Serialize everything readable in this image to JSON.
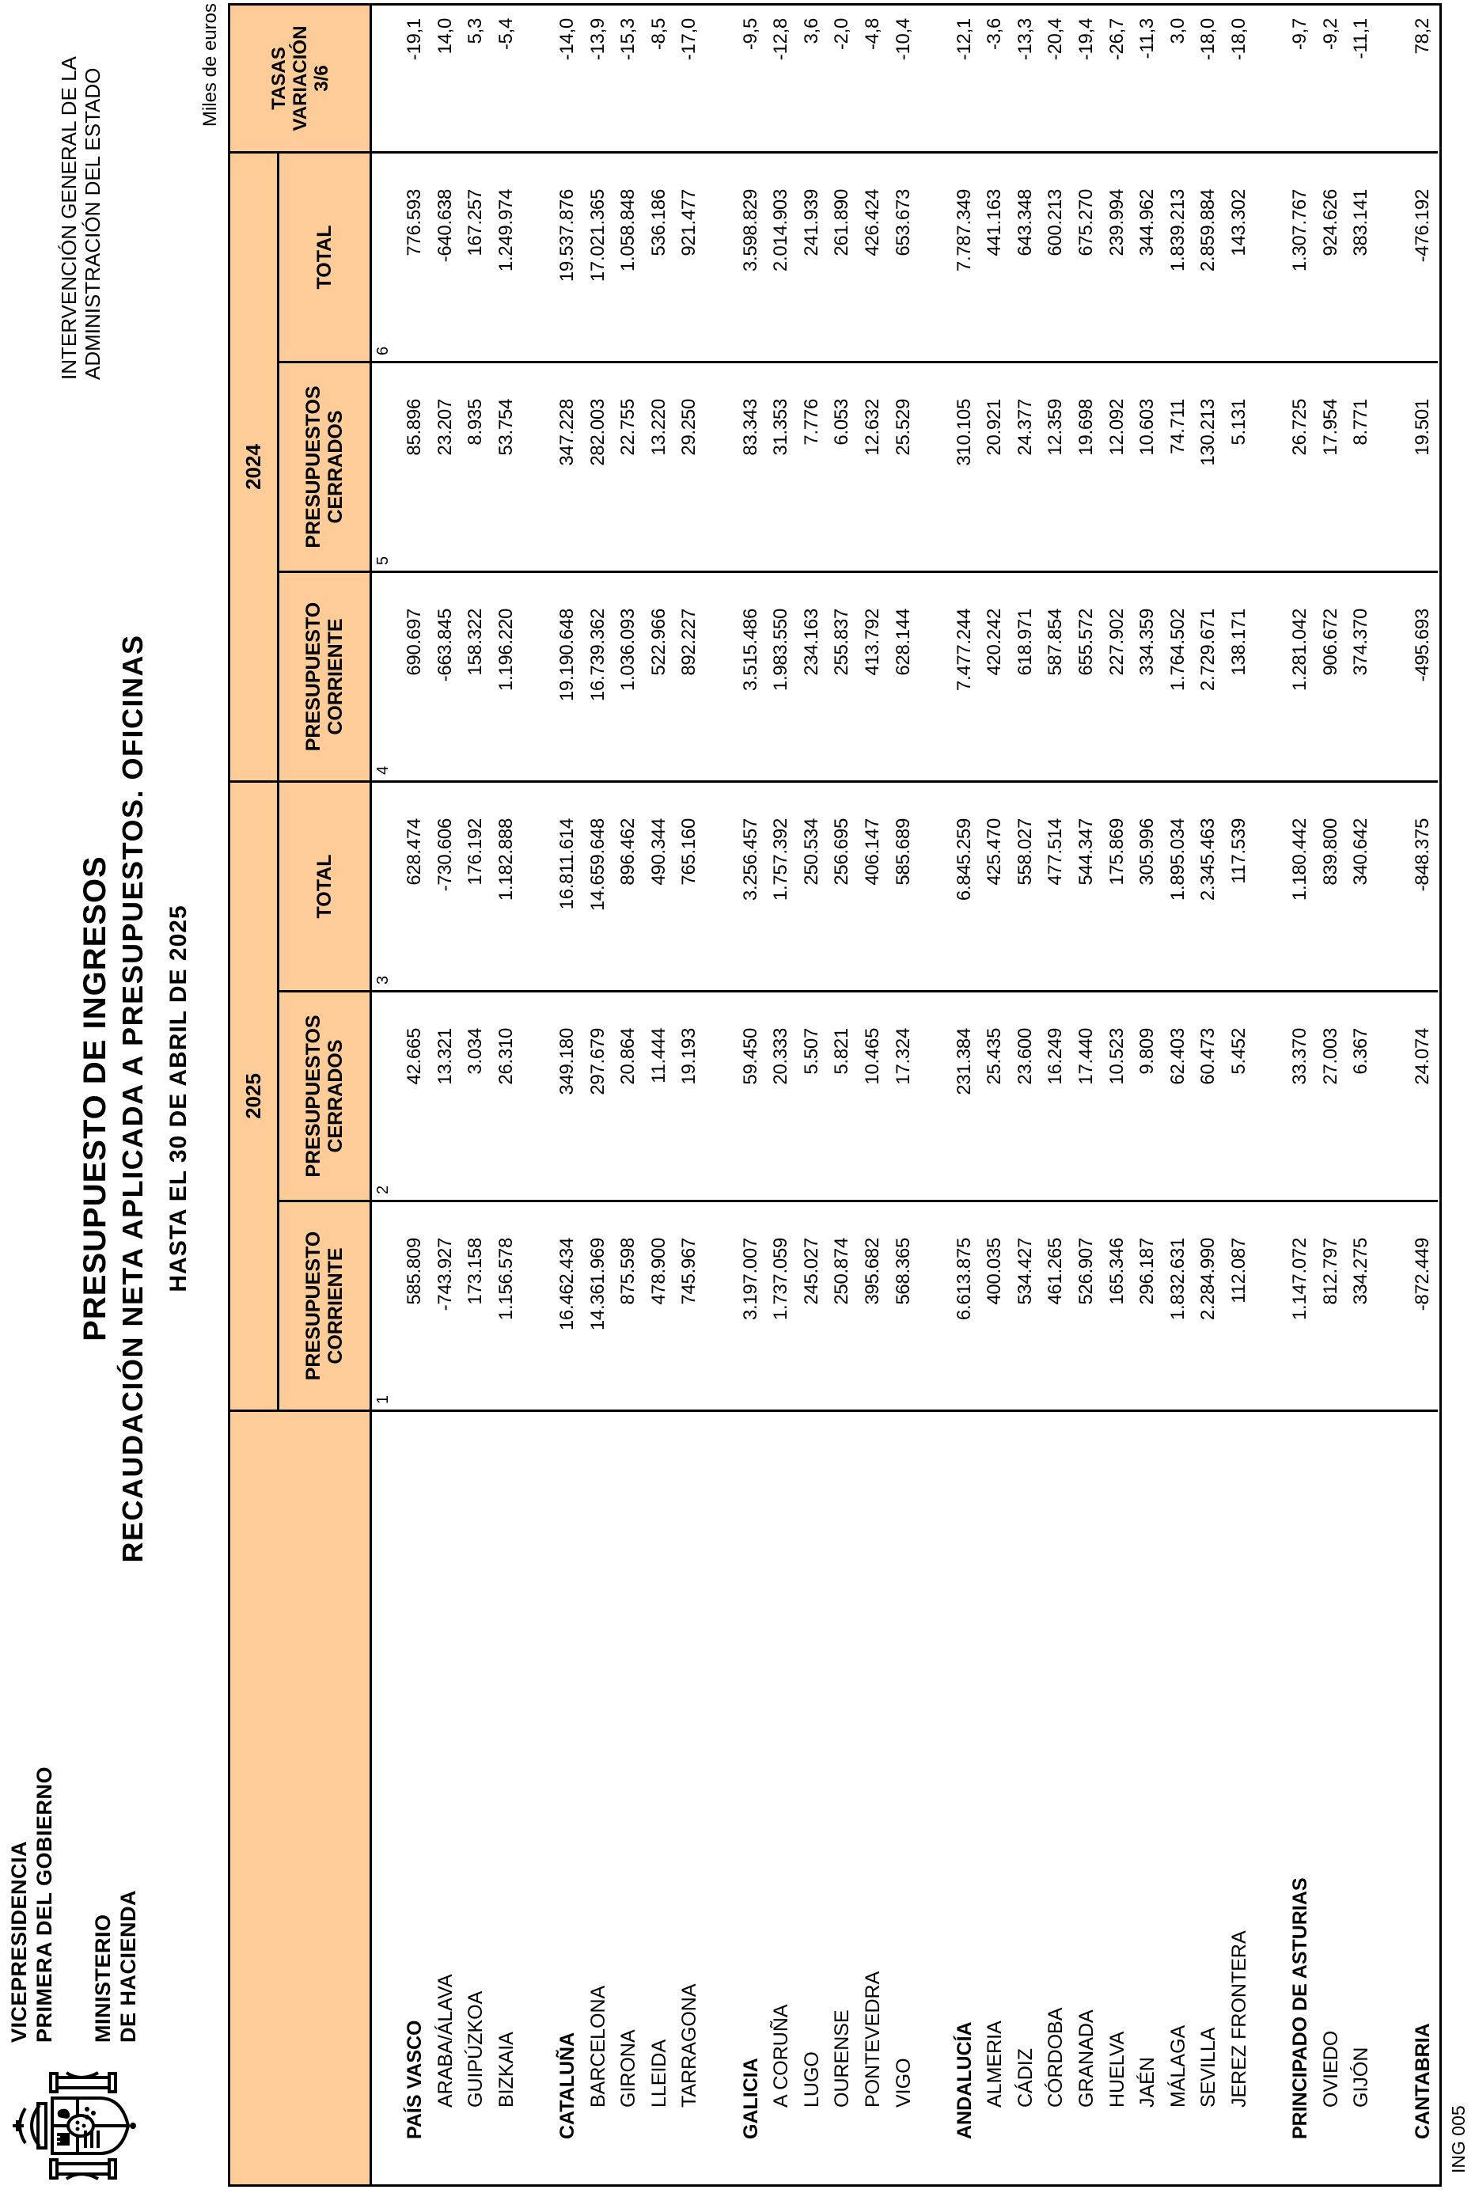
{
  "page": {
    "units_note": "Miles de euros",
    "form_code": "ING 005"
  },
  "letterhead": {
    "coat_of_arms_icon": "spain-coat-of-arms",
    "ministry_line1": "VICEPRESIDENCIA",
    "ministry_line2": "PRIMERA DEL GOBIERNO",
    "ministry_line3": "MINISTERIO",
    "ministry_line4": "DE HACIENDA"
  },
  "agency": {
    "line1": "INTERVENCIÓN GENERAL DE LA",
    "line2": "ADMINISTRACIÓN DEL ESTADO"
  },
  "title": {
    "line1": "PRESUPUESTO DE INGRESOS",
    "line2": "RECAUDACIÓN NETA APLICADA A PRESUPUESTOS. OFICINAS",
    "line3": "HASTA EL 30 DE ABRIL DE 2025"
  },
  "colors": {
    "header_bg": "#FECC99",
    "border": "#000000",
    "text": "#000000"
  },
  "table": {
    "year_2025": "2025",
    "year_2024": "2024",
    "tasas_header": {
      "l1": "TASAS",
      "l2": "VARIACIÓN",
      "l3": "3/6"
    },
    "col_headers": [
      {
        "l1": "PRESUPUESTO",
        "l2": "CORRIENTE"
      },
      {
        "l1": "PRESUPUESTOS",
        "l2": "CERRADOS"
      },
      {
        "l1": "TOTAL",
        "l2": ""
      },
      {
        "l1": "PRESUPUESTO",
        "l2": "CORRIENTE"
      },
      {
        "l1": "PRESUPUESTOS",
        "l2": "CERRADOS"
      },
      {
        "l1": "TOTAL",
        "l2": ""
      }
    ],
    "column_numbers": [
      "1",
      "2",
      "3",
      "4",
      "5",
      "6"
    ],
    "rows": [
      {
        "name": "PAÍS VASCO",
        "bold": true,
        "indent": false,
        "values": [
          "585.809",
          "42.665",
          "628.474",
          "690.697",
          "85.896",
          "776.593",
          "-19,1"
        ]
      },
      {
        "name": "ARABA/ÁLAVA",
        "bold": false,
        "indent": true,
        "values": [
          "-743.927",
          "13.321",
          "-730.606",
          "-663.845",
          "23.207",
          "-640.638",
          "14,0"
        ]
      },
      {
        "name": "GUIPÚZKOA",
        "bold": false,
        "indent": true,
        "values": [
          "173.158",
          "3.034",
          "176.192",
          "158.322",
          "8.935",
          "167.257",
          "5,3"
        ]
      },
      {
        "name": "BIZKAIA",
        "bold": false,
        "indent": true,
        "values": [
          "1.156.578",
          "26.310",
          "1.182.888",
          "1.196.220",
          "53.754",
          "1.249.974",
          "-5,4"
        ]
      },
      {
        "name": "",
        "bold": false,
        "indent": false,
        "values": [
          "",
          "",
          "",
          "",
          "",
          "",
          ""
        ]
      },
      {
        "name": "CATALUÑA",
        "bold": true,
        "indent": false,
        "values": [
          "16.462.434",
          "349.180",
          "16.811.614",
          "19.190.648",
          "347.228",
          "19.537.876",
          "-14,0"
        ]
      },
      {
        "name": "BARCELONA",
        "bold": false,
        "indent": true,
        "values": [
          "14.361.969",
          "297.679",
          "14.659.648",
          "16.739.362",
          "282.003",
          "17.021.365",
          "-13,9"
        ]
      },
      {
        "name": "GIRONA",
        "bold": false,
        "indent": true,
        "values": [
          "875.598",
          "20.864",
          "896.462",
          "1.036.093",
          "22.755",
          "1.058.848",
          "-15,3"
        ]
      },
      {
        "name": "LLEIDA",
        "bold": false,
        "indent": true,
        "values": [
          "478.900",
          "11.444",
          "490.344",
          "522.966",
          "13.220",
          "536.186",
          "-8,5"
        ]
      },
      {
        "name": "TARRAGONA",
        "bold": false,
        "indent": true,
        "values": [
          "745.967",
          "19.193",
          "765.160",
          "892.227",
          "29.250",
          "921.477",
          "-17,0"
        ]
      },
      {
        "name": "",
        "bold": false,
        "indent": false,
        "values": [
          "",
          "",
          "",
          "",
          "",
          "",
          ""
        ]
      },
      {
        "name": "GALICIA",
        "bold": true,
        "indent": false,
        "values": [
          "3.197.007",
          "59.450",
          "3.256.457",
          "3.515.486",
          "83.343",
          "3.598.829",
          "-9,5"
        ]
      },
      {
        "name": "A CORUÑA",
        "bold": false,
        "indent": true,
        "values": [
          "1.737.059",
          "20.333",
          "1.757.392",
          "1.983.550",
          "31.353",
          "2.014.903",
          "-12,8"
        ]
      },
      {
        "name": "LUGO",
        "bold": false,
        "indent": true,
        "values": [
          "245.027",
          "5.507",
          "250.534",
          "234.163",
          "7.776",
          "241.939",
          "3,6"
        ]
      },
      {
        "name": "OURENSE",
        "bold": false,
        "indent": true,
        "values": [
          "250.874",
          "5.821",
          "256.695",
          "255.837",
          "6.053",
          "261.890",
          "-2,0"
        ]
      },
      {
        "name": "PONTEVEDRA",
        "bold": false,
        "indent": true,
        "values": [
          "395.682",
          "10.465",
          "406.147",
          "413.792",
          "12.632",
          "426.424",
          "-4,8"
        ]
      },
      {
        "name": "VIGO",
        "bold": false,
        "indent": true,
        "values": [
          "568.365",
          "17.324",
          "585.689",
          "628.144",
          "25.529",
          "653.673",
          "-10,4"
        ]
      },
      {
        "name": "",
        "bold": false,
        "indent": false,
        "values": [
          "",
          "",
          "",
          "",
          "",
          "",
          ""
        ]
      },
      {
        "name": "ANDALUCÍA",
        "bold": true,
        "indent": false,
        "values": [
          "6.613.875",
          "231.384",
          "6.845.259",
          "7.477.244",
          "310.105",
          "7.787.349",
          "-12,1"
        ]
      },
      {
        "name": "ALMERIA",
        "bold": false,
        "indent": true,
        "values": [
          "400.035",
          "25.435",
          "425.470",
          "420.242",
          "20.921",
          "441.163",
          "-3,6"
        ]
      },
      {
        "name": "CÁDIZ",
        "bold": false,
        "indent": true,
        "values": [
          "534.427",
          "23.600",
          "558.027",
          "618.971",
          "24.377",
          "643.348",
          "-13,3"
        ]
      },
      {
        "name": "CÓRDOBA",
        "bold": false,
        "indent": true,
        "values": [
          "461.265",
          "16.249",
          "477.514",
          "587.854",
          "12.359",
          "600.213",
          "-20,4"
        ]
      },
      {
        "name": "GRANADA",
        "bold": false,
        "indent": true,
        "values": [
          "526.907",
          "17.440",
          "544.347",
          "655.572",
          "19.698",
          "675.270",
          "-19,4"
        ]
      },
      {
        "name": "HUELVA",
        "bold": false,
        "indent": true,
        "values": [
          "165.346",
          "10.523",
          "175.869",
          "227.902",
          "12.092",
          "239.994",
          "-26,7"
        ]
      },
      {
        "name": "JAÉN",
        "bold": false,
        "indent": true,
        "values": [
          "296.187",
          "9.809",
          "305.996",
          "334.359",
          "10.603",
          "344.962",
          "-11,3"
        ]
      },
      {
        "name": "MÁLAGA",
        "bold": false,
        "indent": true,
        "values": [
          "1.832.631",
          "62.403",
          "1.895.034",
          "1.764.502",
          "74.711",
          "1.839.213",
          "3,0"
        ]
      },
      {
        "name": "SEVILLA",
        "bold": false,
        "indent": true,
        "values": [
          "2.284.990",
          "60.473",
          "2.345.463",
          "2.729.671",
          "130.213",
          "2.859.884",
          "-18,0"
        ]
      },
      {
        "name": "JEREZ FRONTERA",
        "bold": false,
        "indent": true,
        "values": [
          "112.087",
          "5.452",
          "117.539",
          "138.171",
          "5.131",
          "143.302",
          "-18,0"
        ]
      },
      {
        "name": "",
        "bold": false,
        "indent": false,
        "values": [
          "",
          "",
          "",
          "",
          "",
          "",
          ""
        ]
      },
      {
        "name": "PRINCIPADO DE ASTURIAS",
        "bold": true,
        "indent": false,
        "values": [
          "1.147.072",
          "33.370",
          "1.180.442",
          "1.281.042",
          "26.725",
          "1.307.767",
          "-9,7"
        ]
      },
      {
        "name": "OVIEDO",
        "bold": false,
        "indent": true,
        "values": [
          "812.797",
          "27.003",
          "839.800",
          "906.672",
          "17.954",
          "924.626",
          "-9,2"
        ]
      },
      {
        "name": "GIJÓN",
        "bold": false,
        "indent": true,
        "values": [
          "334.275",
          "6.367",
          "340.642",
          "374.370",
          "8.771",
          "383.141",
          "-11,1"
        ]
      },
      {
        "name": "",
        "bold": false,
        "indent": false,
        "values": [
          "",
          "",
          "",
          "",
          "",
          "",
          ""
        ]
      },
      {
        "name": "CANTABRIA",
        "bold": true,
        "indent": false,
        "values": [
          "-872.449",
          "24.074",
          "-848.375",
          "-495.693",
          "19.501",
          "-476.192",
          "78,2"
        ]
      }
    ]
  }
}
